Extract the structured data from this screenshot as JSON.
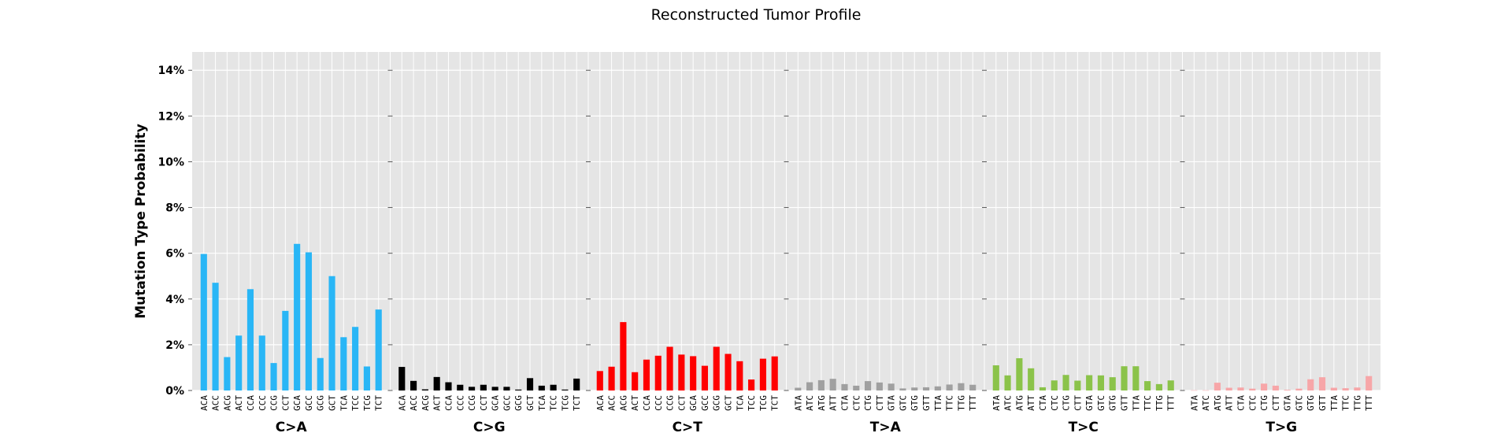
{
  "chart_data": {
    "type": "bar",
    "title": "Reconstructed Tumor Profile",
    "ylabel": "Mutation Type Probability",
    "xlabel": "",
    "ylim": [
      0,
      0.148
    ],
    "yticks": [
      "0%",
      "2%",
      "4%",
      "6%",
      "8%",
      "10%",
      "12%",
      "14%"
    ],
    "grid": true,
    "background": "#e5e5e5",
    "groups": [
      {
        "name": "C>A",
        "color": "#29b6f6",
        "categories": [
          "ACA",
          "ACC",
          "ACG",
          "ACT",
          "CCA",
          "CCC",
          "CCG",
          "CCT",
          "GCA",
          "GCC",
          "GCG",
          "GCT",
          "TCA",
          "TCC",
          "TCG",
          "TCT"
        ],
        "values": [
          0.0597,
          0.0471,
          0.0146,
          0.024,
          0.0443,
          0.024,
          0.012,
          0.0348,
          0.0641,
          0.0604,
          0.0142,
          0.05,
          0.0233,
          0.0278,
          0.0105,
          0.0354
        ]
      },
      {
        "name": "C>G",
        "color": "#000000",
        "categories": [
          "ACA",
          "ACC",
          "ACG",
          "ACT",
          "CCA",
          "CCC",
          "CCG",
          "CCT",
          "GCA",
          "GCC",
          "GCG",
          "GCT",
          "TCA",
          "TCC",
          "TCG",
          "TCT"
        ],
        "values": [
          0.0103,
          0.0042,
          0.0005,
          0.0059,
          0.0036,
          0.0025,
          0.0016,
          0.0025,
          0.0016,
          0.0016,
          0.0004,
          0.0054,
          0.0021,
          0.0025,
          0.0004,
          0.0052
        ]
      },
      {
        "name": "C>T",
        "color": "#ff0000",
        "categories": [
          "ACA",
          "ACC",
          "ACG",
          "ACT",
          "CCA",
          "CCC",
          "CCG",
          "CCT",
          "GCA",
          "GCC",
          "GCG",
          "GCT",
          "TCA",
          "TCC",
          "TCG",
          "TCT"
        ],
        "values": [
          0.0085,
          0.0104,
          0.0299,
          0.008,
          0.0135,
          0.0152,
          0.0191,
          0.0157,
          0.015,
          0.0108,
          0.0191,
          0.016,
          0.0128,
          0.0048,
          0.0139,
          0.0149
        ]
      },
      {
        "name": "T>A",
        "color": "#a0a0a0",
        "categories": [
          "ATA",
          "ATC",
          "ATG",
          "ATT",
          "CTA",
          "CTC",
          "CTG",
          "CTT",
          "GTA",
          "GTC",
          "GTG",
          "GTT",
          "TTA",
          "TTC",
          "TTG",
          "TTT"
        ],
        "values": [
          0.0012,
          0.0036,
          0.0045,
          0.0051,
          0.0028,
          0.0021,
          0.0041,
          0.0035,
          0.003,
          0.0009,
          0.0013,
          0.0014,
          0.0018,
          0.0026,
          0.0032,
          0.0025
        ]
      },
      {
        "name": "T>C",
        "color": "#8bc34a",
        "categories": [
          "ATA",
          "ATC",
          "ATG",
          "ATT",
          "CTA",
          "CTC",
          "CTG",
          "CTT",
          "GTA",
          "GTC",
          "GTG",
          "GTT",
          "TTA",
          "TTC",
          "TTG",
          "TTT"
        ],
        "values": [
          0.011,
          0.0066,
          0.0141,
          0.0097,
          0.0014,
          0.0044,
          0.0068,
          0.0043,
          0.0067,
          0.0066,
          0.0058,
          0.0106,
          0.0106,
          0.0041,
          0.0028,
          0.0044
        ]
      },
      {
        "name": "T>G",
        "color": "#f7a6a8",
        "categories": [
          "ATA",
          "ATC",
          "ATG",
          "ATT",
          "CTA",
          "CTC",
          "CTG",
          "CTT",
          "GTA",
          "GTC",
          "GTG",
          "GTT",
          "TTA",
          "TTC",
          "TTG",
          "TTT"
        ],
        "values": [
          0.0001,
          0.0001,
          0.0034,
          0.0012,
          0.0013,
          0.0008,
          0.003,
          0.0021,
          0.0003,
          0.0008,
          0.0049,
          0.0058,
          0.0012,
          0.001,
          0.0013,
          0.0063
        ]
      }
    ]
  }
}
